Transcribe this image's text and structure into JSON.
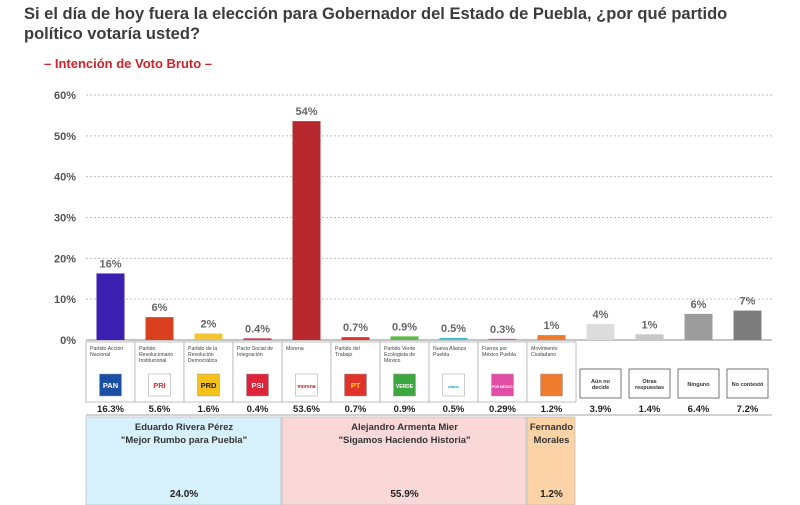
{
  "header": {
    "title": "Si el día de hoy fuera la elección para Gobernador del Estado de Puebla, ¿por qué partido político votaría usted?",
    "subtitle": "– Intención de Voto Bruto –"
  },
  "colors": {
    "gridline": "#bdbdbd",
    "cell_border": "#b0b0b0",
    "coalition_pan": "#d6f1fb",
    "coalition_morena": "#fbd8d8",
    "coalition_mc": "#fbd3a7"
  },
  "chart_data": {
    "type": "bar",
    "ylim": [
      0,
      60
    ],
    "yticks": [
      "0%",
      "10%",
      "20%",
      "30%",
      "40%",
      "50%",
      "60%"
    ],
    "categories": [
      "Partido Acción Nacional",
      "Partido Revolucionario Institucional",
      "Partido de la Revolución Democrática",
      "Pacto Social de Integración",
      "Morena",
      "Partido del Trabajo",
      "Partido Verde Ecologista de México",
      "Nueva Alianza Puebla",
      "Fuerza por México Puebla",
      "Movimiento Ciudadano",
      "Aún no decide",
      "Otras respuestas",
      "Ninguno",
      "No contestó"
    ],
    "values": [
      16.3,
      5.6,
      1.6,
      0.4,
      53.6,
      0.7,
      0.9,
      0.5,
      0.29,
      1.2,
      3.9,
      1.4,
      6.4,
      7.2
    ],
    "bar_labels": [
      "16%",
      "6%",
      "2%",
      "0.4%",
      "54%",
      "0.7%",
      "0.9%",
      "0.5%",
      "0.3%",
      "1%",
      "4%",
      "1%",
      "6%",
      "7%"
    ],
    "table_values": [
      "16.3%",
      "5.6%",
      "1.6%",
      "0.4%",
      "53.6%",
      "0.7%",
      "0.9%",
      "0.5%",
      "0.29%",
      "1.2%",
      "3.9%",
      "1.4%",
      "6.4%",
      "7.2%"
    ],
    "colors": [
      "#3a1fb0",
      "#d9411e",
      "#f3c531",
      "#e02d4a",
      "#b7282e",
      "#e2332b",
      "#5fb946",
      "#3fbfd1",
      "#e254a7",
      "#ef7c2c",
      "#dcdcdc",
      "#c8c8c8",
      "#9c9c9c",
      "#7d7d7d"
    ],
    "logos": [
      {
        "text": "PAN",
        "icon": "pan-logo-icon",
        "bg": "#1a4fa3",
        "fg": "#ffffff"
      },
      {
        "text": "PRI",
        "icon": "pri-logo-icon",
        "bg": "#ffffff",
        "fg": "#d32f2f"
      },
      {
        "text": "PRD",
        "icon": "prd-logo-icon",
        "bg": "#f5c21b",
        "fg": "#1a1a1a"
      },
      {
        "text": "PSI",
        "icon": "psi-logo-icon",
        "bg": "#e0223a",
        "fg": "#ffffff"
      },
      {
        "text": "morena",
        "icon": "morena-logo-icon",
        "bg": "#ffffff",
        "fg": "#b5262c"
      },
      {
        "text": "PT",
        "icon": "pt-logo-icon",
        "bg": "#e2332b",
        "fg": "#ffe000"
      },
      {
        "text": "VERDE",
        "icon": "pvem-logo-icon",
        "bg": "#3da63e",
        "fg": "#ffffff"
      },
      {
        "text": "alianza",
        "icon": "nueva-alianza-logo-icon",
        "bg": "#ffffff",
        "fg": "#1aa3b8"
      },
      {
        "text": "FUERZA POR MÉXICO PUEBLA",
        "icon": "fuerza-mexico-logo-icon",
        "bg": "#e24ea6",
        "fg": "#ffffff"
      },
      {
        "text": "",
        "icon": "movimiento-ciudadano-logo-icon",
        "bg": "#ef7c2c",
        "fg": "#ffffff"
      }
    ],
    "coalitions": [
      {
        "name": "Eduardo Rivera Pérez",
        "slogan": "\"Mejor Rumbo para Puebla\"",
        "total": "24.0%",
        "from": 0,
        "to": 3,
        "color": "#d6f1fb"
      },
      {
        "name": "Alejandro Armenta Mier",
        "slogan": "\"Sigamos Haciendo Historia\"",
        "total": "55.9%",
        "from": 4,
        "to": 8,
        "color": "#fbd8d8"
      },
      {
        "name": "Fernando Morales",
        "slogan": "",
        "total": "1.2%",
        "from": 9,
        "to": 9,
        "color": "#fbd3a7"
      }
    ]
  }
}
